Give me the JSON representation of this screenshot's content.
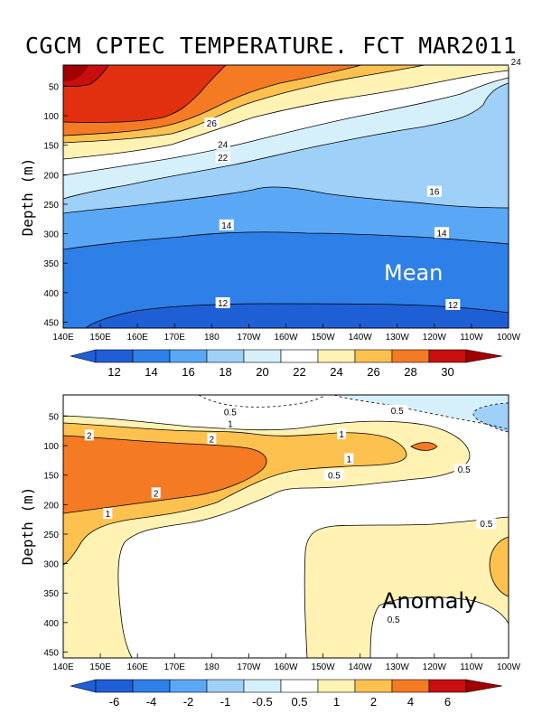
{
  "title": "CGCM CPTEC TEMPERATURE. FCT MAR2011",
  "colors": {
    "c12": "#1f5fd6",
    "c14": "#2e7fe8",
    "c16": "#5aa8f5",
    "c18": "#9fd0f8",
    "c20": "#d6f0fb",
    "c22": "#ffffff",
    "c24": "#fff2b3",
    "c26": "#fdc14f",
    "c28": "#f47a24",
    "c29": "#e0300f",
    "c30": "#c80e0e",
    "c31": "#a00000"
  },
  "chart_data": [
    {
      "type": "contour",
      "panel": "mean",
      "label": "Mean",
      "xlabel": "",
      "ylabel": "Depth (m)",
      "x_ticks": [
        "140E",
        "150E",
        "160E",
        "170E",
        "180",
        "170W",
        "160W",
        "150W",
        "140W",
        "130W",
        "120W",
        "110W",
        "100W"
      ],
      "y_ticks": [
        "50",
        "100",
        "150",
        "200",
        "250",
        "300",
        "350",
        "400",
        "450"
      ],
      "ylim": [
        0,
        460
      ],
      "colorbar_levels": [
        "12",
        "14",
        "16",
        "18",
        "20",
        "22",
        "24",
        "26",
        "28",
        "30"
      ],
      "contour_labels": [
        {
          "text": "24",
          "lon": 262,
          "depth": 8
        },
        {
          "text": "26",
          "lon": 180,
          "depth": 112
        },
        {
          "text": "24",
          "lon": 183,
          "depth": 148
        },
        {
          "text": "22",
          "lon": 183,
          "depth": 170
        },
        {
          "text": "16",
          "lon": 240,
          "depth": 228
        },
        {
          "text": "14",
          "lon": 184,
          "depth": 285
        },
        {
          "text": "14",
          "lon": 242,
          "depth": 298
        },
        {
          "text": "12",
          "lon": 183,
          "depth": 417
        },
        {
          "text": "12",
          "lon": 245,
          "depth": 420
        }
      ]
    },
    {
      "type": "contour",
      "panel": "anomaly",
      "label": "Anomaly",
      "xlabel": "",
      "ylabel": "Depth (m)",
      "x_ticks": [
        "140E",
        "150E",
        "160E",
        "170E",
        "180",
        "170W",
        "160W",
        "150W",
        "140W",
        "130W",
        "120W",
        "110W",
        "100W"
      ],
      "y_ticks": [
        "50",
        "100",
        "150",
        "200",
        "250",
        "300",
        "350",
        "400",
        "450"
      ],
      "ylim": [
        0,
        460
      ],
      "colorbar_levels": [
        "-6",
        "-4",
        "-2",
        "-1",
        "-0.5",
        "0.5",
        "1",
        "2",
        "4",
        "6"
      ],
      "contour_labels": [
        {
          "text": "0.5",
          "lon": 185,
          "depth": 42
        },
        {
          "text": "0.5",
          "lon": 230,
          "depth": 40
        },
        {
          "text": "1",
          "lon": 185,
          "depth": 62
        },
        {
          "text": "2",
          "lon": 147,
          "depth": 82
        },
        {
          "text": "2",
          "lon": 180,
          "depth": 88
        },
        {
          "text": "1",
          "lon": 215,
          "depth": 80
        },
        {
          "text": "1",
          "lon": 217,
          "depth": 122
        },
        {
          "text": "0.5",
          "lon": 248,
          "depth": 140
        },
        {
          "text": "0.5",
          "lon": 213,
          "depth": 150
        },
        {
          "text": "2",
          "lon": 165,
          "depth": 180
        },
        {
          "text": "1",
          "lon": 152,
          "depth": 215
        },
        {
          "text": "0.5",
          "lon": 254,
          "depth": 232
        },
        {
          "text": "0.5",
          "lon": 229,
          "depth": 394
        }
      ]
    }
  ]
}
